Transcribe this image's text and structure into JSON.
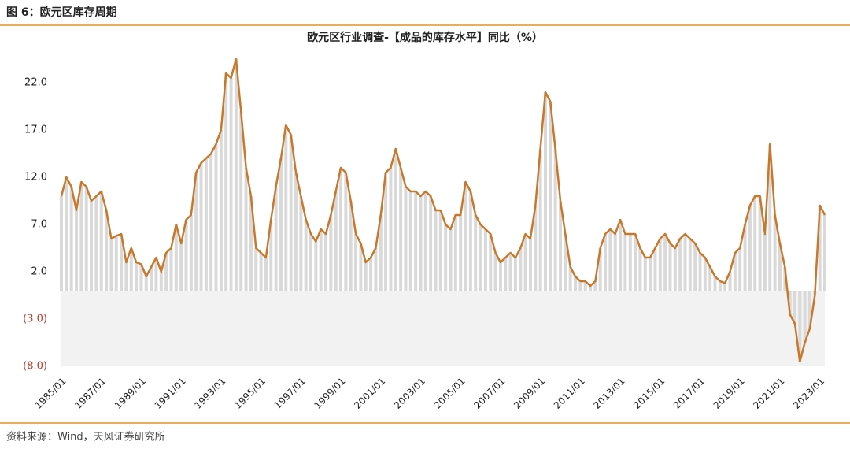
{
  "header": "图 6：欧元区库存周期",
  "source": "资料来源：Wind，天风证券研究所",
  "chart_data": {
    "type": "line",
    "title": "欧元区行业调查-【成品的库存水平】同比（%）",
    "x": [
      "1985/01",
      "1985/04",
      "1985/07",
      "1985/10",
      "1986/01",
      "1986/04",
      "1986/07",
      "1986/10",
      "1987/01",
      "1987/04",
      "1987/07",
      "1987/10",
      "1988/01",
      "1988/04",
      "1988/07",
      "1988/10",
      "1989/01",
      "1989/04",
      "1989/07",
      "1989/10",
      "1990/01",
      "1990/04",
      "1990/07",
      "1990/10",
      "1991/01",
      "1991/04",
      "1991/07",
      "1991/10",
      "1992/01",
      "1992/04",
      "1992/07",
      "1992/10",
      "1993/01",
      "1993/04",
      "1993/07",
      "1993/10",
      "1994/01",
      "1994/04",
      "1994/07",
      "1994/10",
      "1995/01",
      "1995/04",
      "1995/07",
      "1995/10",
      "1996/01",
      "1996/04",
      "1996/07",
      "1996/10",
      "1997/01",
      "1997/04",
      "1997/07",
      "1997/10",
      "1998/01",
      "1998/04",
      "1998/07",
      "1998/10",
      "1999/01",
      "1999/04",
      "1999/07",
      "1999/10",
      "2000/01",
      "2000/04",
      "2000/07",
      "2000/10",
      "2001/01",
      "2001/04",
      "2001/07",
      "2001/10",
      "2002/01",
      "2002/04",
      "2002/07",
      "2002/10",
      "2003/01",
      "2003/04",
      "2003/07",
      "2003/10",
      "2004/01",
      "2004/04",
      "2004/07",
      "2004/10",
      "2005/01",
      "2005/04",
      "2005/07",
      "2005/10",
      "2006/01",
      "2006/04",
      "2006/07",
      "2006/10",
      "2007/01",
      "2007/04",
      "2007/07",
      "2007/10",
      "2008/01",
      "2008/04",
      "2008/07",
      "2008/10",
      "2009/01",
      "2009/04",
      "2009/07",
      "2009/10",
      "2010/01",
      "2010/04",
      "2010/07",
      "2010/10",
      "2011/01",
      "2011/04",
      "2011/07",
      "2011/10",
      "2012/01",
      "2012/04",
      "2012/07",
      "2012/10",
      "2013/01",
      "2013/04",
      "2013/07",
      "2013/10",
      "2014/01",
      "2014/04",
      "2014/07",
      "2014/10",
      "2015/01",
      "2015/04",
      "2015/07",
      "2015/10",
      "2016/01",
      "2016/04",
      "2016/07",
      "2016/10",
      "2017/01",
      "2017/04",
      "2017/07",
      "2017/10",
      "2018/01",
      "2018/04",
      "2018/07",
      "2018/10",
      "2019/01",
      "2019/04",
      "2019/07",
      "2019/10",
      "2020/01",
      "2020/04",
      "2020/07",
      "2020/10",
      "2021/01",
      "2021/04",
      "2021/07",
      "2021/10",
      "2022/01",
      "2022/04",
      "2022/07",
      "2022/10",
      "2023/01",
      "2023/04"
    ],
    "series": [
      {
        "color": "#c8782a",
        "values": [
          10,
          12,
          11,
          8.5,
          11.5,
          11,
          9.5,
          10,
          10.5,
          8.5,
          5.5,
          5.8,
          6,
          3,
          4.5,
          3,
          2.8,
          1.5,
          2.5,
          3.5,
          2,
          4,
          4.5,
          7,
          5,
          7.5,
          8,
          12.5,
          13.5,
          14,
          14.5,
          15.5,
          17,
          23,
          22.5,
          24.5,
          19,
          13,
          10,
          4.5,
          4,
          3.5,
          7.5,
          11,
          14,
          17.5,
          16.5,
          12.5,
          10,
          7.5,
          6,
          5.2,
          6.5,
          6,
          8,
          10.5,
          13,
          12.5,
          9.5,
          6,
          5,
          3,
          3.5,
          4.5,
          8,
          12.5,
          13,
          15,
          13,
          11,
          10.5,
          10.5,
          10,
          10.5,
          10,
          8.5,
          8.5,
          7,
          6.5,
          8,
          8,
          11.5,
          10.5,
          8,
          7,
          6.5,
          6,
          4,
          3,
          3.5,
          4,
          3.5,
          4.5,
          6,
          5.5,
          9,
          15,
          21,
          20,
          15,
          9.5,
          6,
          2.5,
          1.5,
          1,
          1,
          0.5,
          1,
          4.5,
          6,
          6.5,
          6,
          7.5,
          6,
          6,
          6,
          4.5,
          3.5,
          3.5,
          4.5,
          5.5,
          6,
          5,
          4.5,
          5.5,
          6,
          5.5,
          5,
          4,
          3.5,
          2.5,
          1.5,
          1,
          0.8,
          2,
          4,
          4.5,
          7,
          9,
          10,
          10,
          6,
          15.5,
          8,
          5,
          2.5,
          -2.5,
          -3.5,
          -7.5,
          -5.5,
          -4,
          -0.5,
          9,
          8
        ]
      }
    ],
    "bar_color": "#d9d9d9",
    "xlim": [
      "1985/01",
      "2023/04"
    ],
    "xticks": [
      "1985/01",
      "1987/01",
      "1989/01",
      "1991/01",
      "1993/01",
      "1995/01",
      "1997/01",
      "1999/01",
      "2001/01",
      "2003/01",
      "2005/01",
      "2007/01",
      "2009/01",
      "2011/01",
      "2013/01",
      "2015/01",
      "2017/01",
      "2019/01",
      "2021/01",
      "2023/01"
    ],
    "ylim": [
      -8,
      25
    ],
    "yticks": [
      {
        "value": 22,
        "label": "22.0"
      },
      {
        "value": 17,
        "label": "17.0"
      },
      {
        "value": 12,
        "label": "12.0"
      },
      {
        "value": 7,
        "label": "7.0"
      },
      {
        "value": 2,
        "label": "2.0"
      },
      {
        "value": -3,
        "label": "(3.0)"
      },
      {
        "value": -8,
        "label": "(8.0)"
      }
    ],
    "negative_label_color": "#c0392b"
  }
}
